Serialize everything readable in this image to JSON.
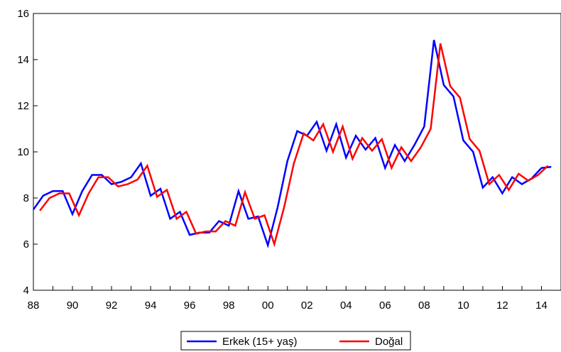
{
  "chart_data": {
    "type": "line",
    "title": "",
    "xlabel": "",
    "ylabel": "",
    "ylim": [
      4,
      16
    ],
    "yticks": [
      4,
      6,
      8,
      10,
      12,
      14,
      16
    ],
    "xlim": [
      1988,
      2015
    ],
    "xticks": [
      {
        "value": 1988,
        "label": "88"
      },
      {
        "value": 1990,
        "label": "90"
      },
      {
        "value": 1992,
        "label": "92"
      },
      {
        "value": 1994,
        "label": "94"
      },
      {
        "value": 1996,
        "label": "96"
      },
      {
        "value": 1998,
        "label": "98"
      },
      {
        "value": 2000,
        "label": "00"
      },
      {
        "value": 2002,
        "label": "02"
      },
      {
        "value": 2004,
        "label": "04"
      },
      {
        "value": 2006,
        "label": "06"
      },
      {
        "value": 2008,
        "label": "08"
      },
      {
        "value": 2010,
        "label": "10"
      },
      {
        "value": 2012,
        "label": "12"
      },
      {
        "value": 2014,
        "label": "14"
      }
    ],
    "grid": false,
    "legend_position": "bottom-center",
    "series": [
      {
        "name": "Erkek (15+ yaş)",
        "color": "#0000ff",
        "points": [
          [
            1988.0,
            7.5
          ],
          [
            1988.5,
            8.1
          ],
          [
            1989.0,
            8.3
          ],
          [
            1989.5,
            8.3
          ],
          [
            1990.0,
            7.3
          ],
          [
            1990.5,
            8.3
          ],
          [
            1991.0,
            9.0
          ],
          [
            1991.5,
            9.0
          ],
          [
            1992.0,
            8.6
          ],
          [
            1992.5,
            8.7
          ],
          [
            1993.0,
            8.9
          ],
          [
            1993.5,
            9.5
          ],
          [
            1994.0,
            8.1
          ],
          [
            1994.5,
            8.4
          ],
          [
            1995.0,
            7.1
          ],
          [
            1995.5,
            7.4
          ],
          [
            1996.0,
            6.4
          ],
          [
            1996.5,
            6.5
          ],
          [
            1997.0,
            6.5
          ],
          [
            1997.5,
            7.0
          ],
          [
            1998.0,
            6.8
          ],
          [
            1998.5,
            8.3
          ],
          [
            1999.0,
            7.1
          ],
          [
            1999.5,
            7.2
          ],
          [
            2000.0,
            5.95
          ],
          [
            2000.5,
            7.6
          ],
          [
            2001.0,
            9.6
          ],
          [
            2001.5,
            10.9
          ],
          [
            2002.0,
            10.7
          ],
          [
            2002.5,
            11.3
          ],
          [
            2003.0,
            10.05
          ],
          [
            2003.5,
            11.2
          ],
          [
            2004.0,
            9.75
          ],
          [
            2004.5,
            10.7
          ],
          [
            2005.0,
            10.1
          ],
          [
            2005.5,
            10.6
          ],
          [
            2006.0,
            9.3
          ],
          [
            2006.5,
            10.3
          ],
          [
            2007.0,
            9.6
          ],
          [
            2007.5,
            10.3
          ],
          [
            2008.0,
            11.1
          ],
          [
            2008.5,
            14.85
          ],
          [
            2009.0,
            12.9
          ],
          [
            2009.5,
            12.4
          ],
          [
            2010.0,
            10.5
          ],
          [
            2010.5,
            10.0
          ],
          [
            2011.0,
            8.45
          ],
          [
            2011.5,
            8.9
          ],
          [
            2012.0,
            8.2
          ],
          [
            2012.5,
            8.9
          ],
          [
            2013.0,
            8.6
          ],
          [
            2013.5,
            8.85
          ],
          [
            2014.0,
            9.3
          ],
          [
            2014.5,
            9.35
          ]
        ]
      },
      {
        "name": "Doğal",
        "color": "#ff0000",
        "points": [
          [
            1988.33,
            7.45
          ],
          [
            1988.83,
            8.0
          ],
          [
            1989.33,
            8.2
          ],
          [
            1989.83,
            8.2
          ],
          [
            1990.33,
            7.25
          ],
          [
            1990.83,
            8.2
          ],
          [
            1991.33,
            8.9
          ],
          [
            1991.83,
            8.9
          ],
          [
            1992.33,
            8.5
          ],
          [
            1992.83,
            8.6
          ],
          [
            1993.33,
            8.8
          ],
          [
            1993.83,
            9.4
          ],
          [
            1994.33,
            8.05
          ],
          [
            1994.83,
            8.35
          ],
          [
            1995.33,
            7.1
          ],
          [
            1995.83,
            7.4
          ],
          [
            1996.33,
            6.45
          ],
          [
            1996.83,
            6.55
          ],
          [
            1997.33,
            6.55
          ],
          [
            1997.83,
            7.0
          ],
          [
            1998.33,
            6.8
          ],
          [
            1998.83,
            8.25
          ],
          [
            1999.33,
            7.1
          ],
          [
            1999.83,
            7.25
          ],
          [
            2000.33,
            6.0
          ],
          [
            2000.83,
            7.6
          ],
          [
            2001.33,
            9.5
          ],
          [
            2001.83,
            10.8
          ],
          [
            2002.33,
            10.5
          ],
          [
            2002.83,
            11.2
          ],
          [
            2003.33,
            10.0
          ],
          [
            2003.83,
            11.1
          ],
          [
            2004.33,
            9.7
          ],
          [
            2004.83,
            10.6
          ],
          [
            2005.33,
            10.05
          ],
          [
            2005.83,
            10.55
          ],
          [
            2006.33,
            9.3
          ],
          [
            2006.83,
            10.2
          ],
          [
            2007.33,
            9.6
          ],
          [
            2007.83,
            10.2
          ],
          [
            2008.33,
            11.0
          ],
          [
            2008.83,
            14.7
          ],
          [
            2009.33,
            12.85
          ],
          [
            2009.83,
            12.35
          ],
          [
            2010.33,
            10.55
          ],
          [
            2010.83,
            10.05
          ],
          [
            2011.33,
            8.6
          ],
          [
            2011.83,
            9.0
          ],
          [
            2012.33,
            8.35
          ],
          [
            2012.83,
            9.05
          ],
          [
            2013.33,
            8.75
          ],
          [
            2013.83,
            9.0
          ],
          [
            2014.33,
            9.4
          ]
        ]
      }
    ]
  }
}
